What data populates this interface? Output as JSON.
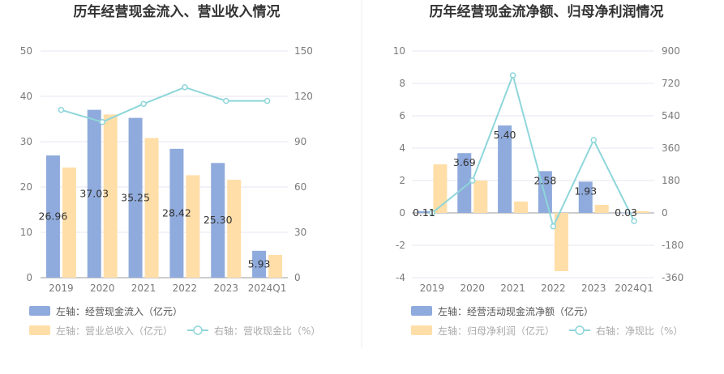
{
  "chart_data": [
    {
      "type": "bar",
      "title": "历年经营现金流入、营业收入情况",
      "categories": [
        "2019",
        "2020",
        "2021",
        "2022",
        "2023",
        "2024Q1"
      ],
      "left_axis": {
        "ticks": [
          "0",
          "10",
          "20",
          "30",
          "40",
          "50"
        ],
        "range": [
          0,
          50
        ]
      },
      "right_axis": {
        "ticks": [
          "0",
          "30",
          "60",
          "90",
          "120",
          "150"
        ],
        "range": [
          0,
          150
        ]
      },
      "grid": true,
      "legend_position": "bottom-left",
      "series": [
        {
          "name": "左轴：经营现金流入（亿元）",
          "type": "bar",
          "axis": "left",
          "color": "#8faadc",
          "values": [
            26.96,
            37.03,
            35.25,
            28.42,
            25.3,
            5.93
          ],
          "labels": [
            "26.96",
            "37.03",
            "35.25",
            "28.42",
            "25.30",
            "5.93"
          ]
        },
        {
          "name": "左轴：营业总收入（亿元）",
          "type": "bar",
          "axis": "left",
          "color": "#ffdea8",
          "values": [
            24.3,
            36.0,
            30.8,
            22.6,
            21.6,
            5.0
          ]
        },
        {
          "name": "右轴：营收现金比（%）",
          "type": "line",
          "axis": "right",
          "color": "#8ed6da",
          "values": [
            111,
            103,
            115,
            126,
            117,
            117
          ]
        }
      ]
    },
    {
      "type": "bar",
      "title": "历年经营现金流净额、归母净利润情况",
      "categories": [
        "2019",
        "2020",
        "2021",
        "2022",
        "2023",
        "2024Q1"
      ],
      "left_axis": {
        "ticks": [
          "-4",
          "-2",
          "0",
          "2",
          "4",
          "6",
          "8",
          "10"
        ],
        "range": [
          -4,
          10
        ]
      },
      "right_axis": {
        "ticks": [
          "-360",
          "-180",
          "0",
          "180",
          "360",
          "540",
          "720",
          "900"
        ],
        "range": [
          -360,
          900
        ]
      },
      "grid": true,
      "legend_position": "bottom-left",
      "series": [
        {
          "name": "左轴：经营活动现金流净额（亿元）",
          "type": "bar",
          "axis": "left",
          "color": "#8faadc",
          "values": [
            0.11,
            3.69,
            5.4,
            2.58,
            1.93,
            0.03
          ],
          "labels": [
            "0.11",
            "3.69",
            "5.40",
            "2.58",
            "1.93",
            "0.03"
          ]
        },
        {
          "name": "左轴：归母净利润（亿元）",
          "type": "bar",
          "axis": "left",
          "color": "#ffdea8",
          "values": [
            3.0,
            2.0,
            0.7,
            -3.6,
            0.5,
            0.1
          ]
        },
        {
          "name": "右轴：净现比（%）",
          "type": "line",
          "axis": "right",
          "color": "#8ed6da",
          "values": [
            0,
            180,
            765,
            -75,
            405,
            -45
          ]
        }
      ]
    }
  ]
}
